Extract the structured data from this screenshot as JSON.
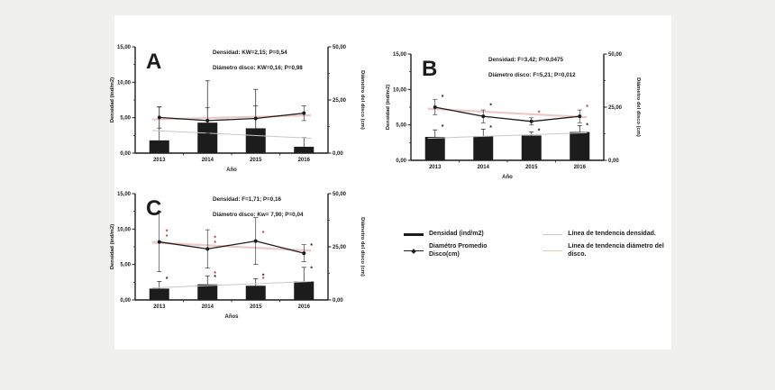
{
  "page": {
    "background": "#f0f0ef",
    "panel_background": "#ffffff"
  },
  "colors": {
    "ink": "#1c1c1c",
    "trend_density": "#c8c8c8",
    "trend_diameter": "#edc9c6",
    "sig_red": "#b03b32"
  },
  "axes": {
    "left_label": "Densidad (ind/m2)",
    "right_label": "Diámetro del disco (cm)",
    "left_max": 15,
    "right_max": 50,
    "left_ticks": [
      {
        "v": 15,
        "label": "15,00"
      },
      {
        "v": 10,
        "label": "10,00"
      },
      {
        "v": 5,
        "label": "5,00"
      },
      {
        "v": 0,
        "label": "0,00"
      }
    ],
    "right_ticks": [
      {
        "v": 50,
        "label": "50,00"
      },
      {
        "v": 25,
        "label": "25,00"
      },
      {
        "v": 0,
        "label": "0,00"
      }
    ]
  },
  "legend": {
    "items": [
      {
        "swatch": "thick-black-line",
        "label": "Densidad (ind/m2)"
      },
      {
        "swatch": "line-with-dot-marker",
        "label": "Diamétro Promedio Disco(cm)"
      },
      {
        "swatch": "thin-gray-line",
        "label": "Línea de tendencia densidad."
      },
      {
        "swatch": "thin-pink-line",
        "label": "Línea de tendencia diámetro del disco."
      }
    ]
  },
  "chart_data": [
    {
      "type": "bar+line",
      "panel_label": "A",
      "stats_line1": "Densidad: KW=2,15; P=0,54",
      "stats_line2": "Diámetro disco: KW=0,16; P=0,98",
      "xlabel": "Año",
      "categories": [
        "2013",
        "2014",
        "2015",
        "2016"
      ],
      "density_bars_ind_m2": [
        1.8,
        4.3,
        3.5,
        0.9
      ],
      "density_err_up": [
        4.7,
        5.9,
        5.5,
        1.3
      ],
      "diameter_line_cm": [
        16.8,
        15.3,
        16.3,
        18.8
      ],
      "diameter_err_cm": [
        5.0,
        6.0,
        6.0,
        3.5
      ],
      "trend_density": [
        3.2,
        2.1
      ],
      "trend_diameter_cm": [
        15.8,
        17.8
      ],
      "asterisks": []
    },
    {
      "type": "bar+line",
      "panel_label": "B",
      "stats_line1": "Densidad: F=3,42; P=0,0475",
      "stats_line2": "Diámetro disco: F=5,21; P=0,012",
      "xlabel": "Año",
      "categories": [
        "2013",
        "2014",
        "2015",
        "2016"
      ],
      "density_bars_ind_m2": [
        3.3,
        3.4,
        3.5,
        4.0
      ],
      "density_err_up": [
        1.0,
        1.0,
        0.5,
        0.9
      ],
      "diameter_line_cm": [
        25.0,
        20.7,
        18.3,
        20.7
      ],
      "diameter_err_cm": [
        3.5,
        3.0,
        1.7,
        3.0
      ],
      "trend_density": [
        3.1,
        3.9
      ],
      "trend_diameter_cm": [
        24.3,
        20.3
      ],
      "asterisks": [
        {
          "x": 0,
          "y": 8.9,
          "c": "ink"
        },
        {
          "x": 0,
          "y": 4.7,
          "c": "ink"
        },
        {
          "x": 1,
          "y": 7.7,
          "c": "ink"
        },
        {
          "x": 1,
          "y": 4.6,
          "c": "ink"
        },
        {
          "x": 2,
          "y": 6.7,
          "c": "red"
        },
        {
          "x": 2,
          "y": 4.1,
          "c": "ink"
        },
        {
          "x": 3,
          "y": 7.5,
          "c": "red"
        },
        {
          "x": 3,
          "y": 4.9,
          "c": "ink"
        }
      ]
    },
    {
      "type": "bar+line",
      "panel_label": "C",
      "stats_line1": "Densidad: F=1,71; P=0,16",
      "stats_line2": "Diámetro disco: Kw= 7,90; P=0,04",
      "xlabel": "Años",
      "categories": [
        "2013",
        "2014",
        "2015",
        "2016"
      ],
      "density_bars_ind_m2": [
        1.6,
        2.2,
        2.0,
        2.6
      ],
      "density_err_up": [
        1.0,
        1.2,
        1.0,
        2.0
      ],
      "diameter_line_cm": [
        27.3,
        24.0,
        27.7,
        22.0
      ],
      "diameter_err_cm": [
        14.0,
        9.0,
        11.0,
        4.0
      ],
      "trend_density": [
        1.7,
        2.6
      ],
      "trend_diameter_cm": [
        27.0,
        23.2
      ],
      "asterisks": [
        {
          "x": 0,
          "y": 9.6,
          "c": "red"
        },
        {
          "x": 0,
          "y": 8.9,
          "c": "red"
        },
        {
          "x": 0,
          "y": 2.9,
          "c": "ink"
        },
        {
          "x": 1,
          "y": 8.7,
          "c": "red"
        },
        {
          "x": 1,
          "y": 8.0,
          "c": "red"
        },
        {
          "x": 1,
          "y": 3.7,
          "c": "red"
        },
        {
          "x": 1,
          "y": 3.2,
          "c": "ink"
        },
        {
          "x": 2,
          "y": 9.4,
          "c": "red"
        },
        {
          "x": 2,
          "y": 3.4,
          "c": "ink"
        },
        {
          "x": 2,
          "y": 2.9,
          "c": "red"
        },
        {
          "x": 3,
          "y": 7.6,
          "c": "ink"
        },
        {
          "x": 3,
          "y": 4.4,
          "c": "ink"
        }
      ]
    }
  ]
}
